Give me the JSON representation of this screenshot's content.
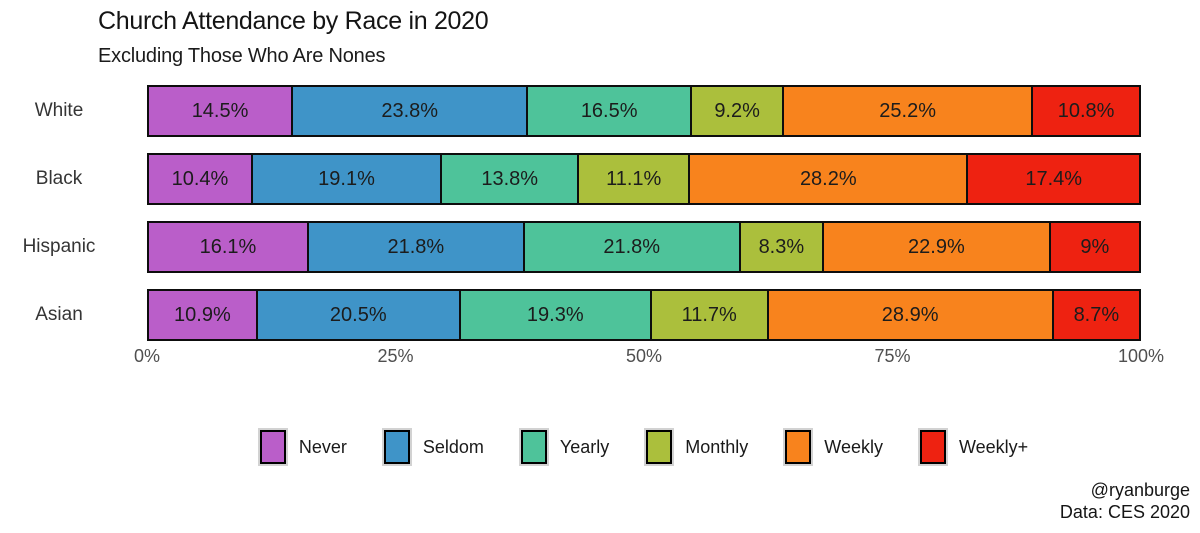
{
  "header": {
    "title": "Church Attendance by Race in 2020",
    "subtitle": "Excluding Those Who Are Nones"
  },
  "credits": {
    "handle": "@ryanburge",
    "source": "Data: CES 2020"
  },
  "chart_data": {
    "type": "bar",
    "orientation": "horizontal",
    "stacked": true,
    "unit": "%",
    "categories": [
      "White",
      "Black",
      "Hispanic",
      "Asian"
    ],
    "series": [
      {
        "name": "Never",
        "color": "#ba5ec9",
        "values": [
          14.5,
          10.4,
          16.1,
          10.9
        ],
        "labels": [
          "14.5%",
          "10.4%",
          "16.1%",
          "10.9%"
        ]
      },
      {
        "name": "Seldom",
        "color": "#3f94c8",
        "values": [
          23.8,
          19.1,
          21.8,
          20.5
        ],
        "labels": [
          "23.8%",
          "19.1%",
          "21.8%",
          "20.5%"
        ]
      },
      {
        "name": "Yearly",
        "color": "#4ec39a",
        "values": [
          16.5,
          13.8,
          21.8,
          19.3
        ],
        "labels": [
          "16.5%",
          "13.8%",
          "21.8%",
          "19.3%"
        ]
      },
      {
        "name": "Monthly",
        "color": "#abbf3c",
        "values": [
          9.2,
          11.1,
          8.3,
          11.7
        ],
        "labels": [
          "9.2%",
          "11.1%",
          "8.3%",
          "11.7%"
        ]
      },
      {
        "name": "Weekly",
        "color": "#f8831d",
        "values": [
          25.2,
          28.2,
          22.9,
          28.9
        ],
        "labels": [
          "25.2%",
          "28.2%",
          "22.9%",
          "28.9%"
        ]
      },
      {
        "name": "Weekly+",
        "color": "#ee2211",
        "values": [
          10.8,
          17.4,
          9.0,
          8.7
        ],
        "labels": [
          "10.8%",
          "17.4%",
          "9%",
          "8.7%"
        ]
      }
    ],
    "xlim": [
      0,
      100
    ],
    "x_ticks": [
      {
        "label": "0%",
        "pos": 0
      },
      {
        "label": "25%",
        "pos": 25
      },
      {
        "label": "50%",
        "pos": 50
      },
      {
        "label": "75%",
        "pos": 75
      },
      {
        "label": "100%",
        "pos": 100
      }
    ],
    "grid": false,
    "legend_position": "bottom"
  }
}
